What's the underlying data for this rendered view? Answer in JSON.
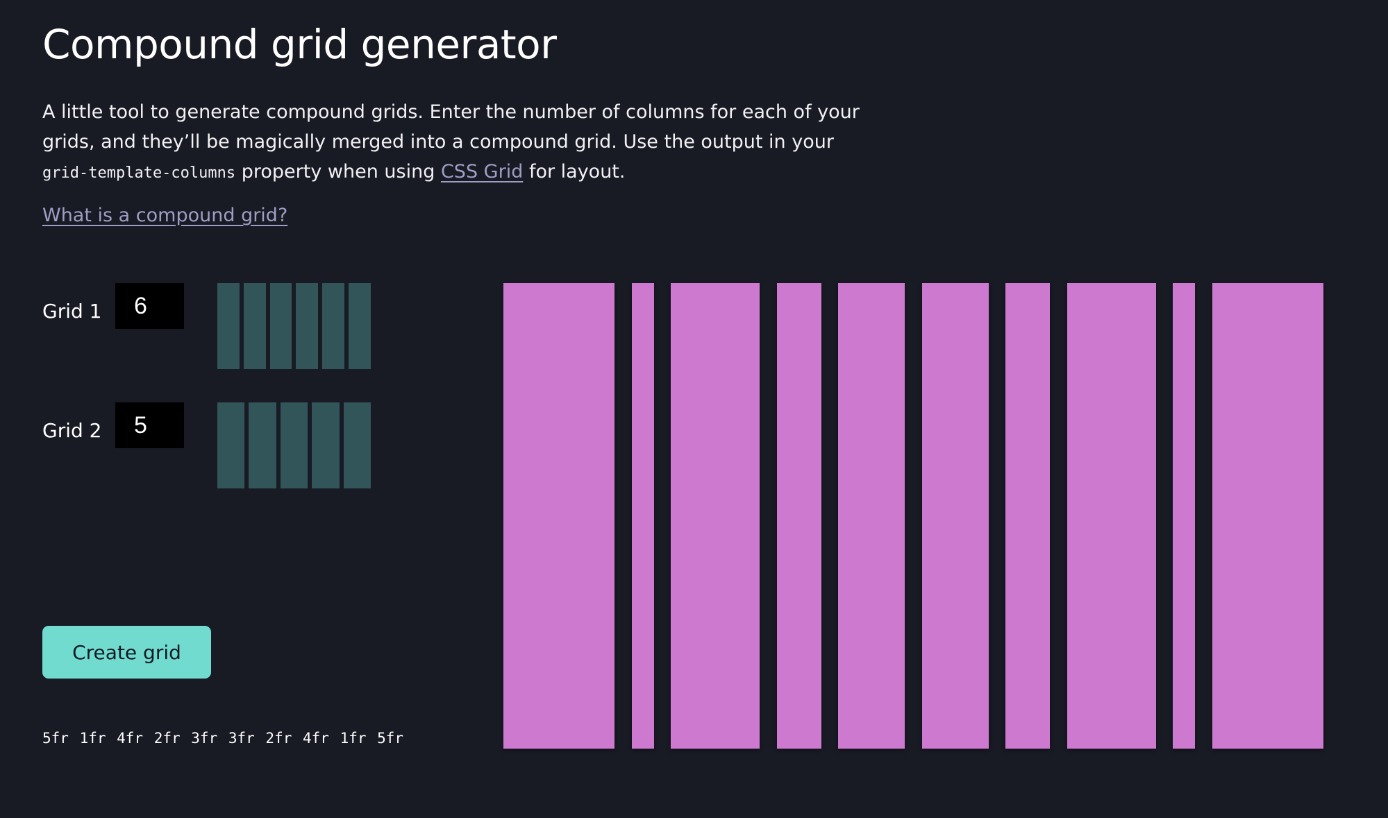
{
  "title": "Compound grid generator",
  "intro": {
    "text_1": "A little tool to generate compound grids. Enter the number of columns for each of your grids, and they’ll be magically merged into a compound grid. Use the output in your",
    "code": "grid-template-columns",
    "text_2": "property when using",
    "link_label": "CSS Grid",
    "text_3": "for layout."
  },
  "what_is_link": "What is a compound grid?",
  "grids": [
    {
      "label": "Grid 1",
      "value": "6",
      "columns": 6
    },
    {
      "label": "Grid 2",
      "value": "5",
      "columns": 5
    }
  ],
  "create_button": "Create grid",
  "output": "5fr 1fr 4fr 2fr 3fr 3fr 2fr 4fr 1fr 5fr",
  "compound_columns_fr": [
    5,
    1,
    4,
    2,
    3,
    3,
    2,
    4,
    1,
    5
  ],
  "colors": {
    "background": "#181a24",
    "preview_column": "#325559",
    "compound_column": "#cc79cf",
    "button": "#71dbcf",
    "link": "#9e9ec4"
  }
}
